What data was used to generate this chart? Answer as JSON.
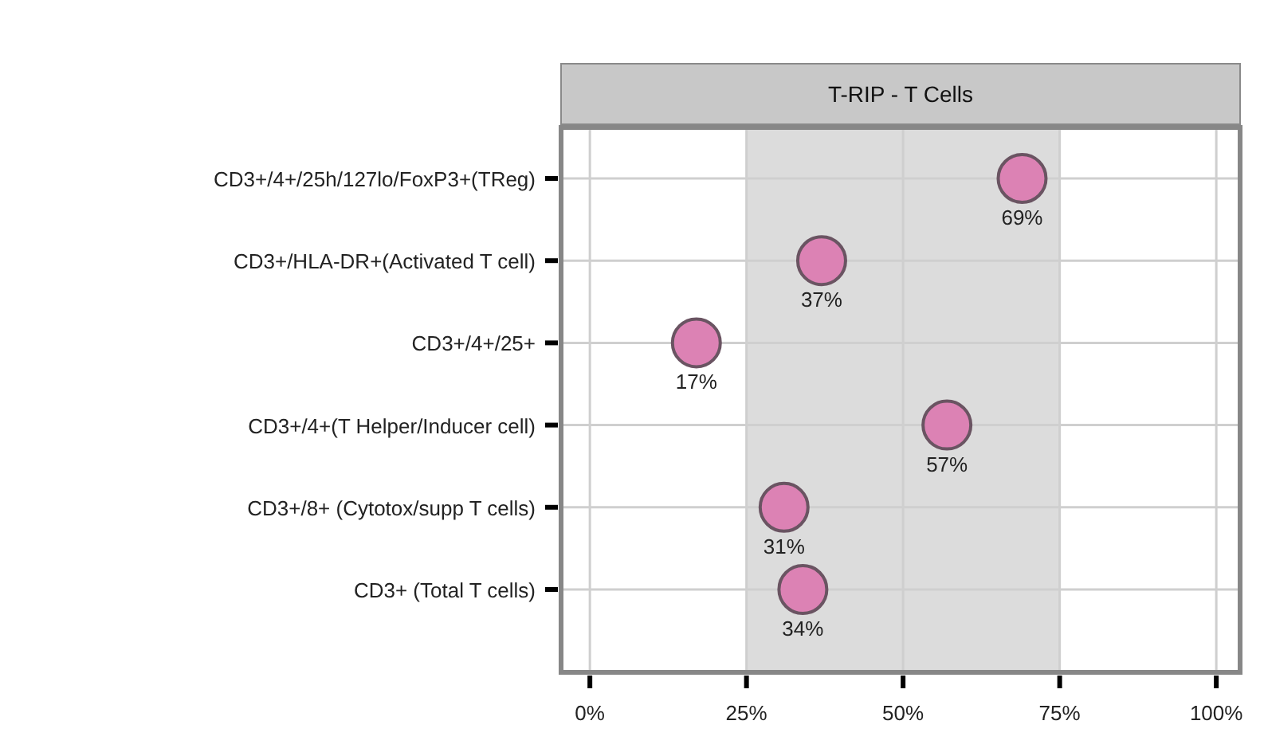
{
  "chart_data": {
    "type": "scatter",
    "orientation": "horizontal",
    "title": "T-RIP - T Cells",
    "categories": [
      "CD3+/4+/25h/127lo/FoxP3+(TReg)",
      "CD3+/HLA-DR+(Activated T cell)",
      "CD3+/4+/25+",
      "CD3+/4+(T Helper/Inducer cell)",
      "CD3+/8+ (Cytotox/supp T cells)",
      "CD3+ (Total T cells)"
    ],
    "values": [
      69,
      37,
      17,
      57,
      31,
      34
    ],
    "value_labels": [
      "69%",
      "37%",
      "17%",
      "57%",
      "31%",
      "34%"
    ],
    "color": "#dc82b4",
    "xlim": [
      -4.6,
      103.8
    ],
    "xticks": [
      {
        "value": 0,
        "label": "0%"
      },
      {
        "value": 25,
        "label": "25%"
      },
      {
        "value": 50,
        "label": "50%"
      },
      {
        "value": 75,
        "label": "75%"
      },
      {
        "value": 100,
        "label": "100%"
      }
    ],
    "bands": [
      {
        "axis": "x",
        "from": 25,
        "to": 75,
        "color": "#dcdcdc"
      }
    ],
    "grid": true,
    "marker": "circle"
  }
}
